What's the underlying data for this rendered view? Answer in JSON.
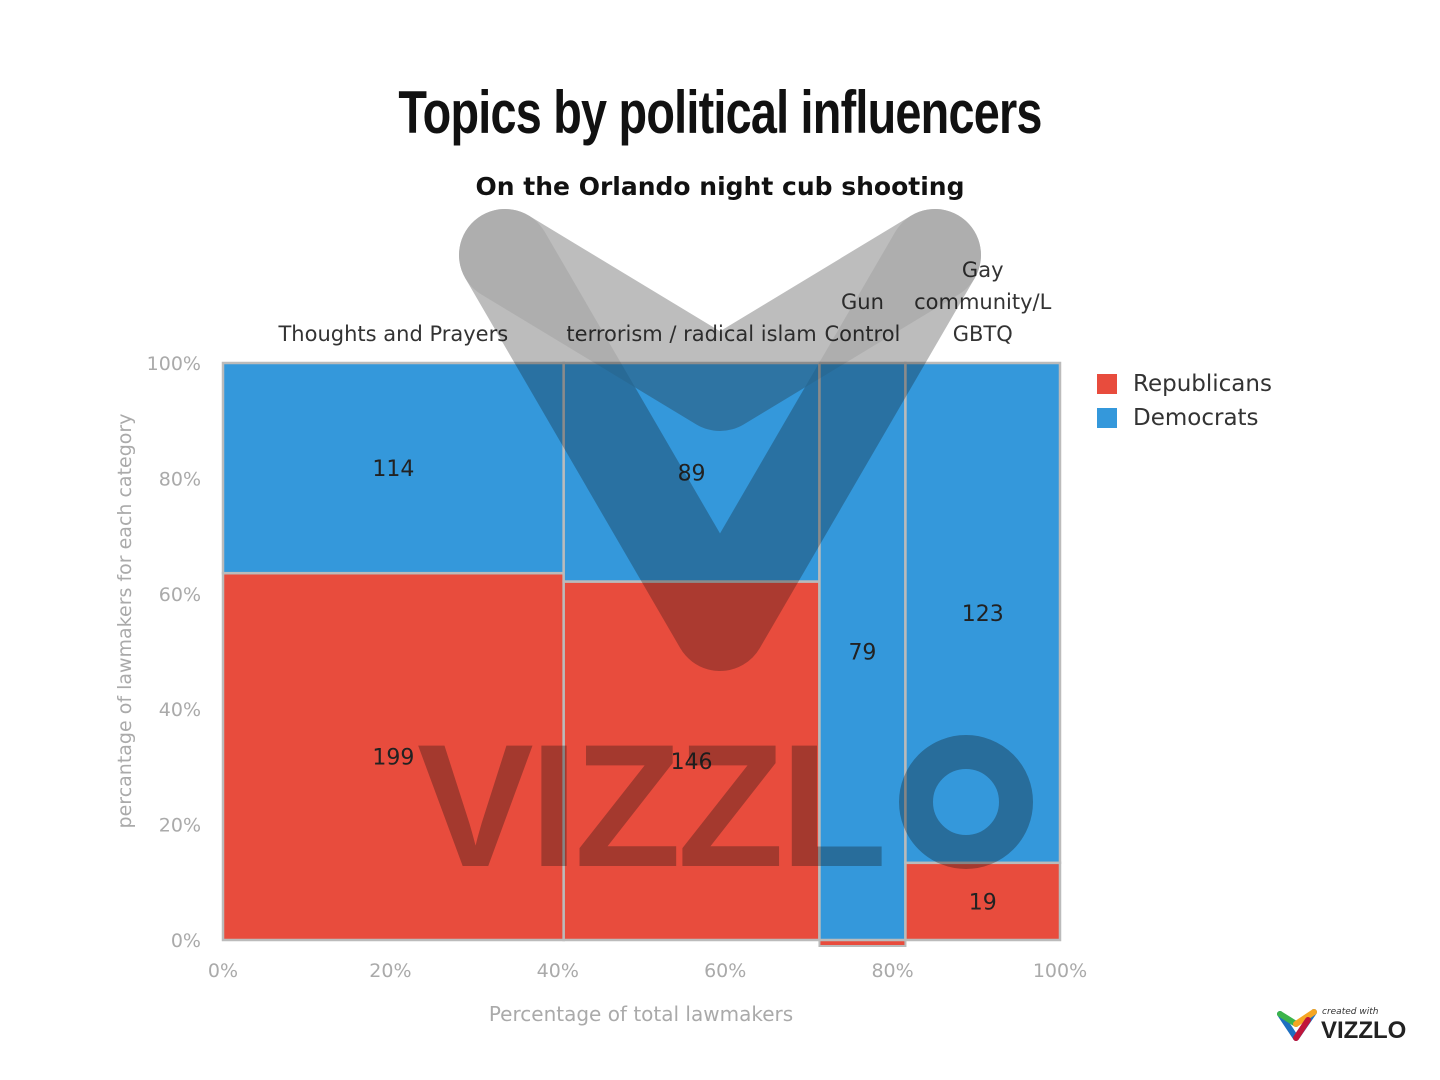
{
  "title": "Topics by political influencers",
  "subtitle": "On the Orlando night cub shooting",
  "chart_data": {
    "type": "marimekko",
    "title": "Topics by political influencers",
    "subtitle": "On the Orlando night cub shooting",
    "xlabel": "Percentage of total lawmakers",
    "ylabel": "percantage of lawmakers for each category",
    "x_ticks": [
      "0%",
      "20%",
      "40%",
      "60%",
      "80%",
      "100%"
    ],
    "y_ticks": [
      "0%",
      "20%",
      "40%",
      "60%",
      "80%",
      "100%"
    ],
    "categories": [
      "Thoughts and Prayers",
      "terrorism / radical islam",
      "Gun Control",
      "Gay community/LGBTQ"
    ],
    "category_label_lines": [
      [
        "Thoughts and Prayers"
      ],
      [
        "terrorism / radical islam"
      ],
      [
        "Gun",
        "Control"
      ],
      [
        "Gay",
        "community/L",
        "GBTQ"
      ]
    ],
    "series": [
      {
        "name": "Republicans",
        "color": "#e84c3d",
        "values": [
          199,
          146,
          0,
          19
        ]
      },
      {
        "name": "Democrats",
        "color": "#3498db",
        "values": [
          114,
          89,
          79,
          123
        ]
      }
    ],
    "legend": "right",
    "grid": false
  },
  "watermark": "VIZZLO",
  "logo": {
    "top": "created with",
    "brand": "VIZZLO"
  }
}
